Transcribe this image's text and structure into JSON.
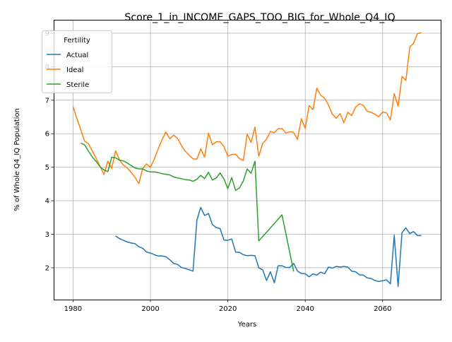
{
  "chart_data": {
    "type": "line",
    "title": "Score_1_in_INCOME_GAPS_TOO_BIG_for_Whole_Q4_IQ",
    "xlabel": "Years",
    "ylabel": "% of Whole Q4_IQ Population",
    "xlim": [
      1975.0,
      2075.0
    ],
    "ylim": [
      1.05,
      9.4
    ],
    "xticks": [
      1980,
      2000,
      2020,
      2040,
      2060
    ],
    "yticks": [
      2,
      3,
      4,
      5,
      6,
      7,
      8,
      9
    ],
    "grid": true,
    "legend": {
      "title": "Fertility",
      "position": "upper-left"
    },
    "series": [
      {
        "name": "Actual",
        "color": "#1f77b4",
        "x": [
          1991,
          1992,
          1993,
          1994,
          1995,
          1996,
          1997,
          1998,
          1999,
          2000,
          2001,
          2002,
          2003,
          2004,
          2005,
          2006,
          2007,
          2008,
          2009,
          2010,
          2011,
          2012,
          2013,
          2014,
          2015,
          2016,
          2017,
          2018,
          2019,
          2020,
          2021,
          2022,
          2023,
          2024,
          2025,
          2026,
          2027,
          2028,
          2029,
          2030,
          2031,
          2032,
          2033,
          2034,
          2035,
          2036,
          2037,
          2038,
          2039,
          2040,
          2041,
          2042,
          2043,
          2044,
          2045,
          2046,
          2047,
          2048,
          2049,
          2050,
          2051,
          2052,
          2053,
          2054,
          2055,
          2056,
          2057,
          2058,
          2059,
          2060,
          2061,
          2062,
          2063,
          2064,
          2065,
          2066,
          2067,
          2068,
          2069,
          2070
        ],
        "y": [
          2.95,
          2.87,
          2.82,
          2.77,
          2.74,
          2.72,
          2.63,
          2.58,
          2.47,
          2.44,
          2.39,
          2.35,
          2.35,
          2.33,
          2.24,
          2.13,
          2.1,
          2.01,
          1.98,
          1.94,
          1.9,
          3.42,
          3.8,
          3.56,
          3.62,
          3.29,
          3.2,
          3.17,
          2.83,
          2.82,
          2.86,
          2.47,
          2.46,
          2.39,
          2.36,
          2.37,
          2.36,
          2.0,
          1.94,
          1.62,
          1.88,
          1.55,
          2.06,
          2.06,
          2.01,
          2.01,
          2.13,
          1.9,
          1.83,
          1.82,
          1.73,
          1.82,
          1.78,
          1.87,
          1.82,
          2.02,
          1.99,
          2.04,
          2.02,
          2.04,
          2.02,
          1.9,
          1.88,
          1.79,
          1.78,
          1.7,
          1.68,
          1.62,
          1.59,
          1.61,
          1.64,
          1.52,
          2.97,
          1.44,
          3.05,
          3.19,
          3.02,
          3.08,
          2.96,
          2.96
        ]
      },
      {
        "name": "Ideal",
        "color": "#ff7f0e",
        "x": [
          1980,
          1981,
          1982,
          1983,
          1984,
          1985,
          1986,
          1987,
          1988,
          1989,
          1990,
          1991,
          1992,
          1993,
          1994,
          1995,
          1996,
          1997,
          1998,
          1999,
          2000,
          2001,
          2002,
          2003,
          2004,
          2005,
          2006,
          2007,
          2008,
          2009,
          2010,
          2011,
          2012,
          2013,
          2014,
          2015,
          2016,
          2017,
          2018,
          2019,
          2020,
          2021,
          2022,
          2023,
          2024,
          2025,
          2026,
          2027,
          2028,
          2029,
          2030,
          2031,
          2032,
          2033,
          2034,
          2035,
          2036,
          2037,
          2038,
          2039,
          2040,
          2041,
          2042,
          2043,
          2044,
          2045,
          2046,
          2047,
          2048,
          2049,
          2050,
          2051,
          2052,
          2053,
          2054,
          2055,
          2056,
          2057,
          2058,
          2059,
          2060,
          2061,
          2062,
          2063,
          2064,
          2065,
          2066,
          2067,
          2068,
          2069,
          2070
        ],
        "y": [
          6.81,
          6.45,
          6.12,
          5.78,
          5.7,
          5.48,
          5.26,
          5.02,
          4.78,
          5.18,
          4.97,
          5.49,
          5.22,
          5.07,
          4.98,
          4.85,
          4.7,
          4.51,
          4.96,
          5.1,
          5.0,
          5.25,
          5.55,
          5.82,
          6.05,
          5.85,
          5.96,
          5.86,
          5.65,
          5.48,
          5.36,
          5.25,
          5.24,
          5.55,
          5.3,
          6.02,
          5.67,
          5.76,
          5.76,
          5.62,
          5.33,
          5.38,
          5.39,
          5.26,
          5.2,
          5.99,
          5.74,
          6.2,
          5.33,
          5.71,
          5.84,
          6.07,
          6.03,
          6.15,
          6.16,
          6.02,
          6.06,
          6.04,
          5.83,
          6.45,
          6.16,
          6.84,
          6.72,
          7.36,
          7.15,
          7.06,
          6.86,
          6.58,
          6.46,
          6.6,
          6.33,
          6.64,
          6.54,
          6.79,
          6.89,
          6.85,
          6.67,
          6.64,
          6.58,
          6.51,
          6.65,
          6.62,
          6.41,
          7.2,
          6.82,
          7.71,
          7.59,
          8.59,
          8.7,
          8.99,
          9.01
        ]
      },
      {
        "name": "Sterile",
        "color": "#2ca02c",
        "x": [
          1982,
          1983,
          1984,
          1985,
          1986,
          1987,
          1988,
          1989,
          1990,
          1991,
          1992,
          1993,
          1994,
          1995,
          1996,
          1997,
          1998,
          1999,
          2000,
          2001,
          2002,
          2003,
          2004,
          2005,
          2006,
          2007,
          2008,
          2009,
          2010,
          2011,
          2012,
          2013,
          2014,
          2015,
          2016,
          2017,
          2018,
          2019,
          2020,
          2021,
          2022,
          2023,
          2024,
          2025,
          2026,
          2027,
          2028,
          2034,
          2037
        ],
        "y": [
          5.72,
          5.67,
          5.48,
          5.3,
          5.17,
          5.01,
          4.92,
          4.87,
          5.3,
          5.28,
          5.21,
          5.19,
          5.13,
          5.05,
          4.98,
          4.95,
          4.95,
          4.89,
          4.86,
          4.86,
          4.84,
          4.81,
          4.79,
          4.77,
          4.71,
          4.68,
          4.66,
          4.63,
          4.62,
          4.58,
          4.64,
          4.76,
          4.66,
          4.85,
          4.62,
          4.68,
          4.83,
          4.65,
          4.36,
          4.69,
          4.31,
          4.38,
          4.59,
          4.95,
          4.82,
          5.18,
          2.8,
          3.58,
          1.89
        ]
      }
    ]
  }
}
